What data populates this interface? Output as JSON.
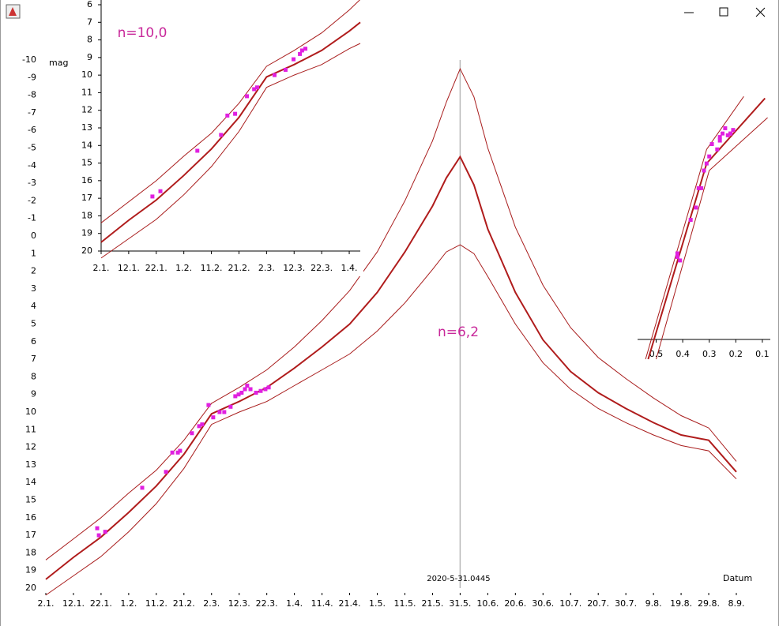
{
  "chart_data": [
    {
      "type": "line",
      "y_label": "mag",
      "x_label": "Datum",
      "annotation": "n=6,2",
      "vline": {
        "x": 150,
        "label": "2020-5-31.0445",
        "color": "#b8b8b8"
      },
      "xlim": [
        0,
        250
      ],
      "ylim": [
        20,
        -10
      ],
      "xticks": [
        {
          "value": 0,
          "label": "2.1."
        },
        {
          "value": 10,
          "label": "12.1."
        },
        {
          "value": 20,
          "label": "22.1."
        },
        {
          "value": 30,
          "label": "1.2."
        },
        {
          "value": 40,
          "label": "11.2."
        },
        {
          "value": 50,
          "label": "21.2."
        },
        {
          "value": 60,
          "label": "2.3."
        },
        {
          "value": 70,
          "label": "12.3."
        },
        {
          "value": 80,
          "label": "22.3."
        },
        {
          "value": 90,
          "label": "1.4."
        },
        {
          "value": 100,
          "label": "11.4."
        },
        {
          "value": 110,
          "label": "21.4."
        },
        {
          "value": 120,
          "label": "1.5."
        },
        {
          "value": 130,
          "label": "11.5."
        },
        {
          "value": 140,
          "label": "21.5."
        },
        {
          "value": 150,
          "label": "31.5."
        },
        {
          "value": 160,
          "label": "10.6."
        },
        {
          "value": 170,
          "label": "20.6."
        },
        {
          "value": 180,
          "label": "30.6."
        },
        {
          "value": 190,
          "label": "10.7."
        },
        {
          "value": 200,
          "label": "20.7."
        },
        {
          "value": 210,
          "label": "30.7."
        },
        {
          "value": 220,
          "label": "9.8."
        },
        {
          "value": 230,
          "label": "19.8."
        },
        {
          "value": 240,
          "label": "29.8."
        },
        {
          "value": 250,
          "label": "8.9."
        }
      ],
      "yticks": [
        -10,
        -9,
        -8,
        -7,
        -6,
        -5,
        -4,
        -3,
        -2,
        -1,
        0,
        1,
        2,
        3,
        4,
        5,
        6,
        7,
        8,
        9,
        10,
        11,
        12,
        13,
        14,
        15,
        16,
        17,
        18,
        19,
        20
      ],
      "axes": false,
      "series": [
        {
          "marker": "line",
          "width": 1,
          "color": "#a81c1c",
          "x": [
            0,
            10,
            20,
            30,
            40,
            50,
            60,
            70,
            80,
            90,
            100,
            110,
            120,
            130,
            140,
            145,
            150,
            155,
            160,
            170,
            180,
            190,
            200,
            210,
            220,
            230,
            240,
            250
          ],
          "values": [
            18.4,
            17.2,
            16.0,
            14.6,
            13.3,
            11.6,
            9.5,
            8.6,
            7.6,
            6.3,
            4.8,
            3.1,
            0.9,
            -2.0,
            -5.4,
            -7.6,
            -9.5,
            -7.9,
            -5.0,
            -0.5,
            2.8,
            5.2,
            6.9,
            8.1,
            9.2,
            10.2,
            10.9,
            12.8
          ]
        },
        {
          "marker": "line",
          "width": 2,
          "color": "#b01c1c",
          "x": [
            0,
            10,
            20,
            30,
            40,
            50,
            60,
            70,
            80,
            90,
            100,
            110,
            120,
            130,
            140,
            145,
            150,
            155,
            160,
            170,
            180,
            190,
            200,
            210,
            220,
            230,
            240,
            250
          ],
          "values": [
            19.5,
            18.25,
            17.1,
            15.7,
            14.2,
            12.4,
            10.1,
            9.4,
            8.6,
            7.5,
            6.3,
            5.0,
            3.2,
            0.9,
            -1.7,
            -3.3,
            -4.5,
            -2.9,
            -0.4,
            3.2,
            5.9,
            7.7,
            8.9,
            9.8,
            10.6,
            11.3,
            11.6,
            13.4
          ]
        },
        {
          "marker": "line",
          "width": 1,
          "color": "#a81c1c",
          "x": [
            0,
            10,
            20,
            30,
            40,
            50,
            60,
            70,
            80,
            90,
            100,
            110,
            120,
            130,
            140,
            145,
            150,
            155,
            160,
            170,
            180,
            190,
            200,
            210,
            220,
            230,
            240,
            250
          ],
          "values": [
            20.4,
            19.3,
            18.2,
            16.8,
            15.2,
            13.2,
            10.7,
            10.0,
            9.4,
            8.5,
            7.6,
            6.7,
            5.4,
            3.8,
            1.9,
            0.9,
            0.5,
            1.0,
            2.3,
            5.0,
            7.2,
            8.7,
            9.8,
            10.6,
            11.3,
            11.9,
            12.2,
            13.8
          ]
        },
        {
          "marker": "square",
          "color": "#e020e0",
          "x": [
            18.6,
            19.2,
            21.5,
            34.9,
            43.5,
            45.8,
            47.8,
            48.6,
            52.9,
            55.5,
            56.6,
            58.9,
            60.6,
            62.9,
            64.6,
            66.9,
            68.6,
            69.8,
            70.9,
            72.1,
            72.9,
            74.1,
            76.1,
            77.8,
            79.5,
            80.7
          ],
          "values": [
            16.6,
            17.0,
            16.8,
            14.3,
            13.4,
            12.3,
            12.3,
            12.2,
            11.2,
            10.8,
            10.7,
            9.6,
            10.3,
            10.0,
            10.0,
            9.7,
            9.1,
            9.0,
            8.9,
            8.7,
            8.5,
            8.7,
            8.9,
            8.8,
            8.7,
            8.6
          ]
        }
      ]
    },
    {
      "type": "line",
      "annotation": "n=10,0",
      "xlim": [
        0,
        94
      ],
      "ylim": [
        20,
        6
      ],
      "xticks": [
        {
          "value": 0,
          "label": "2.1."
        },
        {
          "value": 10,
          "label": "12.1."
        },
        {
          "value": 20,
          "label": "22.1."
        },
        {
          "value": 30,
          "label": "1.2."
        },
        {
          "value": 40,
          "label": "11.2."
        },
        {
          "value": 50,
          "label": "21.2."
        },
        {
          "value": 60,
          "label": "2.3."
        },
        {
          "value": 70,
          "label": "12.3."
        },
        {
          "value": 80,
          "label": "22.3."
        },
        {
          "value": 90,
          "label": "1.4."
        }
      ],
      "yticks": [
        6,
        7,
        8,
        9,
        10,
        11,
        12,
        13,
        14,
        15,
        16,
        17,
        18,
        19,
        20
      ],
      "axes": true,
      "series": [
        {
          "marker": "line",
          "width": 1,
          "color": "#a81c1c",
          "x": [
            0,
            10,
            20,
            30,
            40,
            50,
            60,
            70,
            80,
            90,
            94
          ],
          "values": [
            18.4,
            17.2,
            16.0,
            14.6,
            13.3,
            11.6,
            9.5,
            8.6,
            7.6,
            6.3,
            5.7
          ]
        },
        {
          "marker": "line",
          "width": 2,
          "color": "#b01c1c",
          "x": [
            0,
            10,
            20,
            30,
            40,
            50,
            60,
            70,
            80,
            90,
            94
          ],
          "values": [
            19.5,
            18.25,
            17.1,
            15.7,
            14.2,
            12.4,
            10.1,
            9.4,
            8.6,
            7.5,
            7.0
          ]
        },
        {
          "marker": "line",
          "width": 1,
          "color": "#a81c1c",
          "x": [
            0,
            10,
            20,
            30,
            40,
            50,
            60,
            70,
            80,
            90,
            94
          ],
          "values": [
            20.4,
            19.3,
            18.2,
            16.8,
            15.2,
            13.2,
            10.7,
            10.0,
            9.4,
            8.5,
            8.2
          ]
        },
        {
          "marker": "square",
          "color": "#e020e0",
          "x": [
            18.6,
            21.5,
            34.9,
            43.5,
            45.8,
            48.6,
            52.9,
            55.5,
            56.6,
            62.9,
            66.9,
            69.8,
            72.1,
            72.9,
            74.1
          ],
          "values": [
            16.9,
            16.6,
            14.3,
            13.4,
            12.3,
            12.2,
            11.2,
            10.8,
            10.7,
            10.0,
            9.7,
            9.1,
            8.8,
            8.6,
            8.5
          ]
        }
      ]
    },
    {
      "type": "line",
      "xlim": [
        0.57,
        0.07
      ],
      "ylim": [
        21.5,
        6.5
      ],
      "xticks": [
        0.5,
        0.4,
        0.3,
        0.2,
        0.1
      ],
      "axes": "x",
      "series": [
        {
          "marker": "line",
          "width": 1,
          "color": "#a81c1c",
          "x": [
            0.54,
            0.31,
            0.17
          ],
          "values": [
            21.5,
            9.6,
            6.6
          ]
        },
        {
          "marker": "line",
          "width": 2,
          "color": "#b01c1c",
          "x": [
            0.53,
            0.31,
            0.09
          ],
          "values": [
            21.5,
            10.4,
            6.7
          ]
        },
        {
          "marker": "line",
          "width": 1,
          "color": "#a81c1c",
          "x": [
            0.5,
            0.3,
            0.08
          ],
          "values": [
            21.5,
            10.8,
            7.8
          ]
        },
        {
          "marker": "square",
          "color": "#e020e0",
          "x": [
            0.42,
            0.41,
            0.42,
            0.37,
            0.35,
            0.34,
            0.33,
            0.32,
            0.31,
            0.3,
            0.29,
            0.27,
            0.26,
            0.26,
            0.25,
            0.24,
            0.23,
            0.22,
            0.22,
            0.21
          ],
          "values": [
            15.5,
            15.9,
            15.7,
            13.6,
            12.9,
            11.8,
            11.8,
            10.8,
            10.4,
            10.0,
            9.3,
            9.6,
            9.1,
            8.9,
            8.7,
            8.4,
            8.8,
            8.7,
            8.7,
            8.5
          ]
        }
      ]
    }
  ]
}
